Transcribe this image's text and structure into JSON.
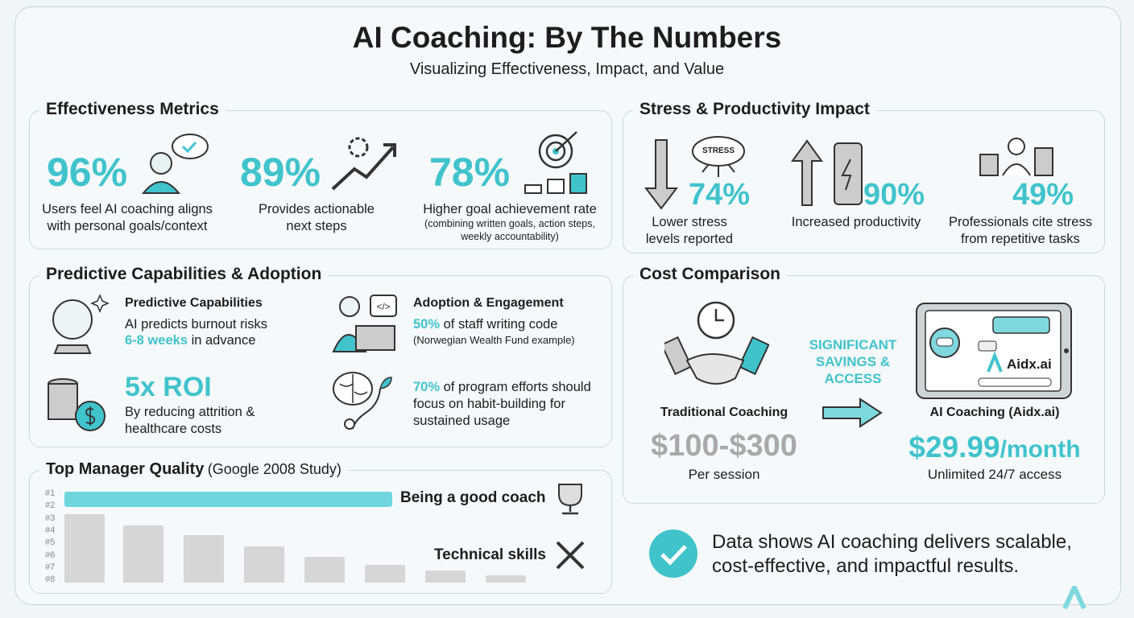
{
  "header": {
    "title": "AI Coaching: By The Numbers",
    "subtitle": "Visualizing Effectiveness, Impact, and Value"
  },
  "effectiveness": {
    "title": "Effectiveness Metrics",
    "items": [
      {
        "value": "96%",
        "label": "Users feel AI coaching aligns with personal goals/context"
      },
      {
        "value": "89%",
        "label": "Provides actionable next steps"
      },
      {
        "value": "78%",
        "label": "Higher goal achievement rate",
        "note": "(combining written goals, action steps, weekly accountability)"
      }
    ]
  },
  "stress": {
    "title": "Stress & Productivity Impact",
    "icon_text": "STRESS",
    "items": [
      {
        "value": "74%",
        "label": "Lower stress levels reported"
      },
      {
        "value": "90%",
        "label": "Increased productivity"
      },
      {
        "value": "49%",
        "label": "Professionals cite stress from repetitive tasks"
      }
    ]
  },
  "predictive": {
    "title": "Predictive Capabilities & Adoption",
    "capabilities": {
      "heading": "Predictive Capabilities",
      "text": "AI predicts burnout risks",
      "highlight": "6-8 weeks",
      "rest": "in advance"
    },
    "adoption": {
      "heading": "Adoption & Engagement",
      "highlight": "50%",
      "text": "of staff writing code",
      "note": "(Norwegian Wealth Fund example)"
    },
    "roi": {
      "value": "5x ROI",
      "text": "By reducing attrition & healthcare costs"
    },
    "habit": {
      "highlight": "70%",
      "text": "of program efforts should focus on habit-building for sustained usage"
    }
  },
  "manager": {
    "title": "Top Manager Quality",
    "subtitle": "(Google 2008 Study)",
    "ranks": [
      "#1",
      "#2",
      "#3",
      "#4",
      "#5",
      "#6",
      "#7",
      "#8"
    ],
    "top_label": "Being a good coach",
    "bottom_label": "Technical skills"
  },
  "cost": {
    "title": "Cost Comparison",
    "traditional": {
      "label": "Traditional Coaching",
      "price": "$100-$300",
      "unit": "Per session"
    },
    "middle": "SIGNIFICANT SAVINGS & ACCESS",
    "brand": "Aidx.ai",
    "ai": {
      "label": "AI Coaching (Aidx.ai)",
      "price": "$29.99",
      "period": "/month",
      "unit": "Unlimited 24/7 access"
    }
  },
  "conclusion": "Data shows AI coaching delivers scalable, cost-effective, and impactful results."
}
